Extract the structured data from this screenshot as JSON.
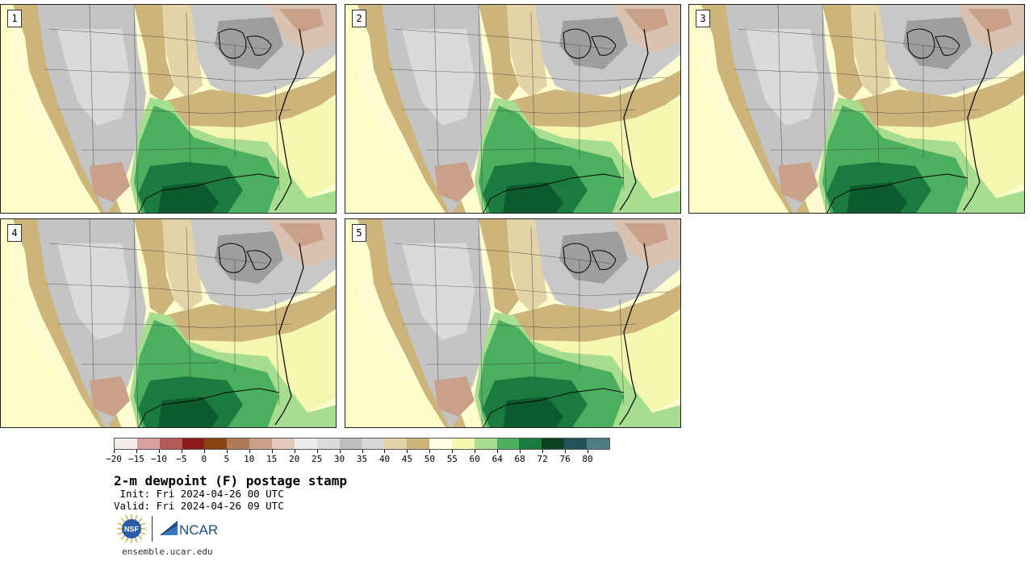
{
  "panels": [
    {
      "label": "1"
    },
    {
      "label": "2"
    },
    {
      "label": "3"
    },
    {
      "label": "4"
    },
    {
      "label": "5"
    }
  ],
  "colorbar": {
    "colors": [
      "#f6ebeb",
      "#d9a0a0",
      "#b45a5a",
      "#8b1a1a",
      "#8b4513",
      "#b07a55",
      "#c9a188",
      "#e3c9b9",
      "#ececec",
      "#dcdcdc",
      "#bdbdbd",
      "#d8d8d8",
      "#e3d4a8",
      "#cdb47a",
      "#ffffe5",
      "#f5f7b0",
      "#a6dd8f",
      "#4caf5f",
      "#1b7a3e",
      "#0c4022",
      "#23535a",
      "#4e7f80"
    ],
    "tick_labels": [
      "−20",
      "−15",
      "−10",
      "−5",
      "0",
      "5",
      "10",
      "15",
      "20",
      "25",
      "30",
      "35",
      "40",
      "45",
      "50",
      "55",
      "60",
      "64",
      "68",
      "72",
      "76",
      "80"
    ]
  },
  "title": "2-m dewpoint (F) postage stamp",
  "init": " Init: Fri 2024-04-26 00 UTC",
  "valid": "Valid: Fri 2024-04-26 09 UTC",
  "logos": {
    "nsf": "NSF",
    "ncar": "NCAR"
  },
  "url": "ensemble.ucar.edu"
}
